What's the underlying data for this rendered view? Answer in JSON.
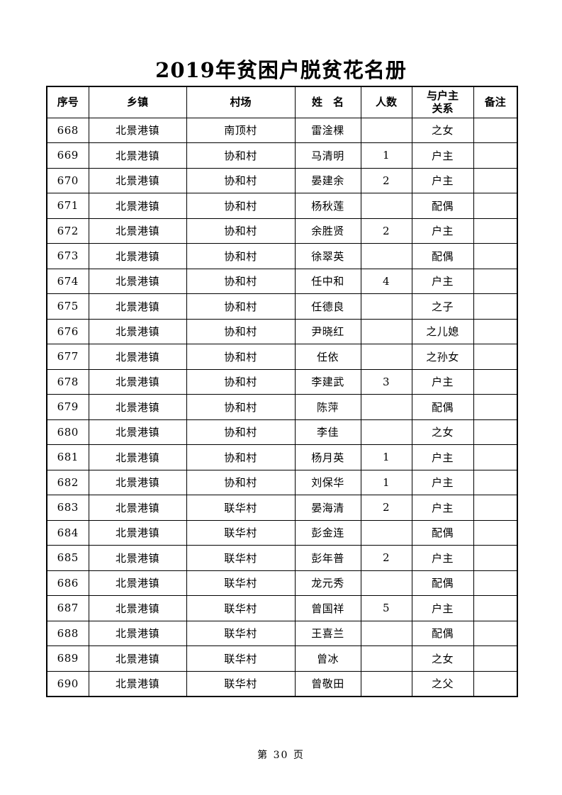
{
  "page": {
    "title": "2019年贫困户脱贫花名册",
    "footer": "第 30 页"
  },
  "table": {
    "headers": [
      "序号",
      "乡镇",
      "村场",
      "姓　名",
      "人数",
      "与户主\n关系",
      "备注"
    ],
    "column_keys": [
      "seq",
      "township",
      "village",
      "name",
      "count",
      "relation",
      "remark"
    ],
    "rows": [
      [
        "668",
        "北景港镇",
        "南顶村",
        "雷淦棵",
        "",
        "之女",
        ""
      ],
      [
        "669",
        "北景港镇",
        "协和村",
        "马清明",
        "1",
        "户主",
        ""
      ],
      [
        "670",
        "北景港镇",
        "协和村",
        "晏建余",
        "2",
        "户主",
        ""
      ],
      [
        "671",
        "北景港镇",
        "协和村",
        "杨秋莲",
        "",
        "配偶",
        ""
      ],
      [
        "672",
        "北景港镇",
        "协和村",
        "余胜贤",
        "2",
        "户主",
        ""
      ],
      [
        "673",
        "北景港镇",
        "协和村",
        "徐翠英",
        "",
        "配偶",
        ""
      ],
      [
        "674",
        "北景港镇",
        "协和村",
        "任中和",
        "4",
        "户主",
        ""
      ],
      [
        "675",
        "北景港镇",
        "协和村",
        "任德良",
        "",
        "之子",
        ""
      ],
      [
        "676",
        "北景港镇",
        "协和村",
        "尹晓红",
        "",
        "之儿媳",
        ""
      ],
      [
        "677",
        "北景港镇",
        "协和村",
        "任依",
        "",
        "之孙女",
        ""
      ],
      [
        "678",
        "北景港镇",
        "协和村",
        "李建武",
        "3",
        "户主",
        ""
      ],
      [
        "679",
        "北景港镇",
        "协和村",
        "陈萍",
        "",
        "配偶",
        ""
      ],
      [
        "680",
        "北景港镇",
        "协和村",
        "李佳",
        "",
        "之女",
        ""
      ],
      [
        "681",
        "北景港镇",
        "协和村",
        "杨月英",
        "1",
        "户主",
        ""
      ],
      [
        "682",
        "北景港镇",
        "协和村",
        "刘保华",
        "1",
        "户主",
        ""
      ],
      [
        "683",
        "北景港镇",
        "联华村",
        "晏海清",
        "2",
        "户主",
        ""
      ],
      [
        "684",
        "北景港镇",
        "联华村",
        "彭金连",
        "",
        "配偶",
        ""
      ],
      [
        "685",
        "北景港镇",
        "联华村",
        "彭年普",
        "2",
        "户主",
        ""
      ],
      [
        "686",
        "北景港镇",
        "联华村",
        "龙元秀",
        "",
        "配偶",
        ""
      ],
      [
        "687",
        "北景港镇",
        "联华村",
        "曾国祥",
        "5",
        "户主",
        ""
      ],
      [
        "688",
        "北景港镇",
        "联华村",
        "王喜兰",
        "",
        "配偶",
        ""
      ],
      [
        "689",
        "北景港镇",
        "联华村",
        "曾冰",
        "",
        "之女",
        ""
      ],
      [
        "690",
        "北景港镇",
        "联华村",
        "曾敬田",
        "",
        "之父",
        ""
      ]
    ]
  }
}
